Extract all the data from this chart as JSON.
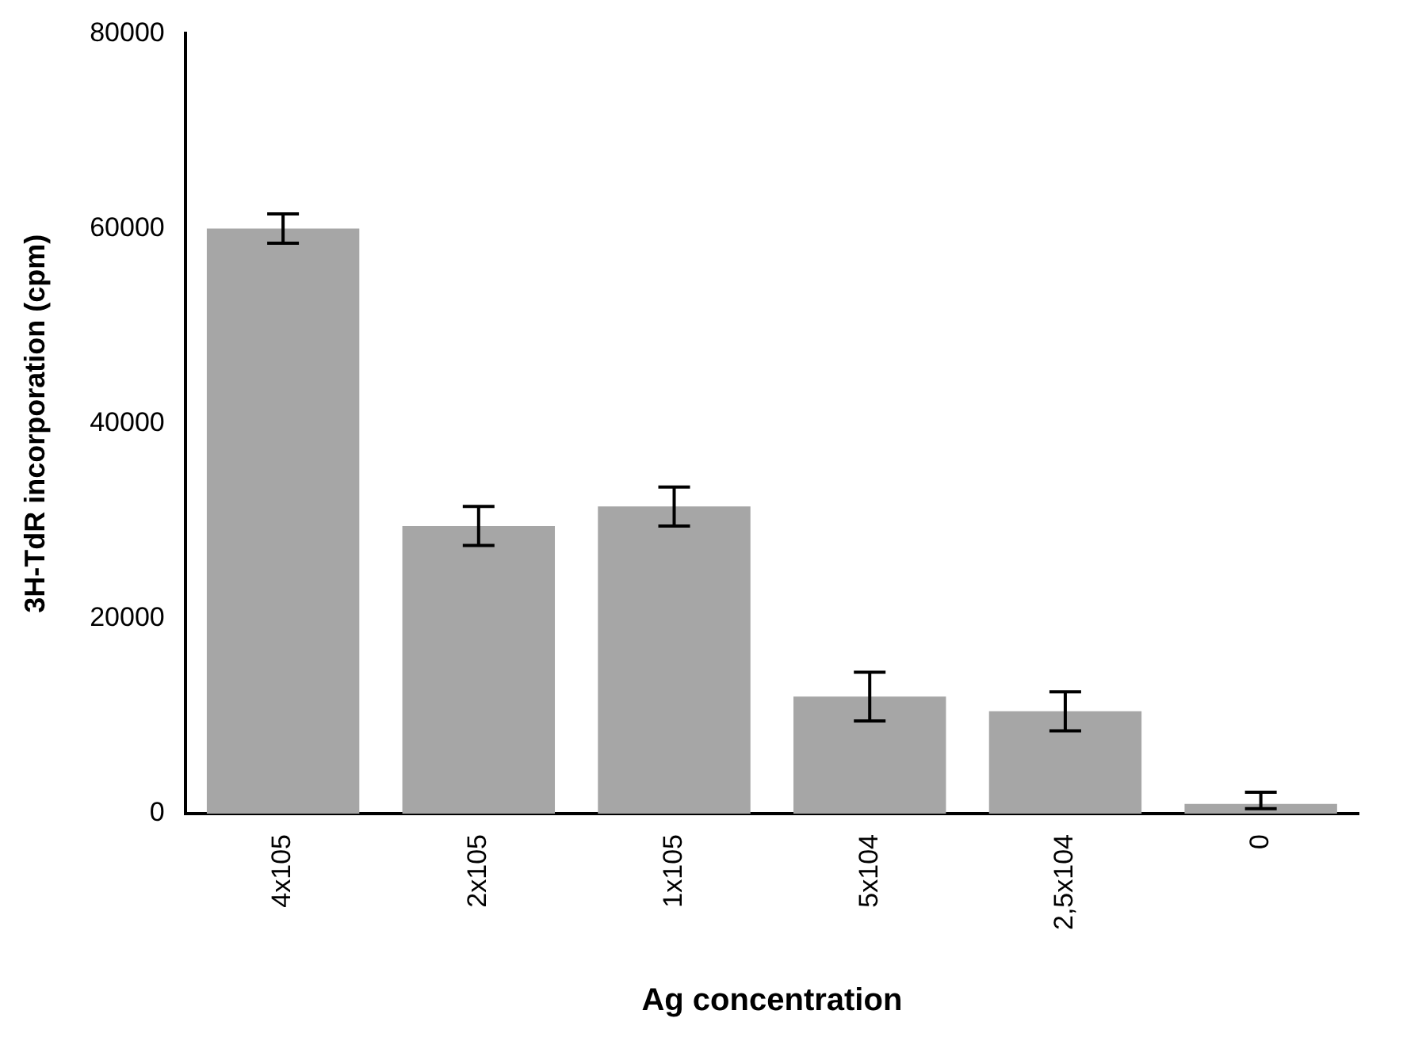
{
  "chart_data": {
    "type": "bar",
    "xlabel": "Ag concentration",
    "ylabel": "3H-TdR incorporation (cpm)",
    "categories": [
      "4x105",
      "2x105",
      "1x105",
      "5x104",
      "2,5x104",
      "0"
    ],
    "values": [
      60000,
      29500,
      31500,
      12000,
      10500,
      1000
    ],
    "errors": [
      1500,
      2000,
      2000,
      2500,
      2000,
      [
        500,
        2200
      ]
    ],
    "color": "#a6a6a6",
    "ylim": [
      0,
      80000
    ],
    "yticks": [
      0,
      20000,
      40000,
      60000,
      80000
    ],
    "grid": false,
    "legend": false
  }
}
